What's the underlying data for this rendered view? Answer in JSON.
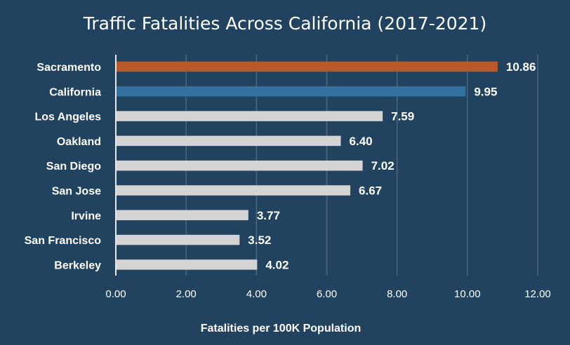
{
  "chart_data": {
    "type": "bar",
    "orientation": "horizontal",
    "title": "Traffic Fatalities Across California (2017-2021)",
    "xlabel": "Fatalities per 100K Population",
    "ylabel": "",
    "xlim": [
      0,
      12
    ],
    "xticks": [
      "0.00",
      "2.00",
      "4.00",
      "6.00",
      "8.00",
      "10.00",
      "12.00"
    ],
    "grid": "vertical",
    "legend": "none",
    "categories": [
      "Sacramento",
      "California",
      "Los Angeles",
      "Oakland",
      "San Diego",
      "San Jose",
      "Irvine",
      "San Francisco",
      "Berkeley"
    ],
    "values": [
      10.86,
      9.95,
      7.59,
      6.4,
      7.02,
      6.67,
      3.77,
      3.52,
      4.02
    ],
    "data_labels": [
      "10.86",
      "9.95",
      "7.59",
      "6.40",
      "7.02",
      "6.67",
      "3.77",
      "3.52",
      "4.02"
    ],
    "bar_colors": [
      "#b85a2a",
      "#33729e",
      "#d4d4d4",
      "#d4d4d4",
      "#d4d4d4",
      "#d4d4d4",
      "#d4d4d4",
      "#d4d4d4",
      "#d4d4d4"
    ],
    "background_color": "#22435f"
  }
}
